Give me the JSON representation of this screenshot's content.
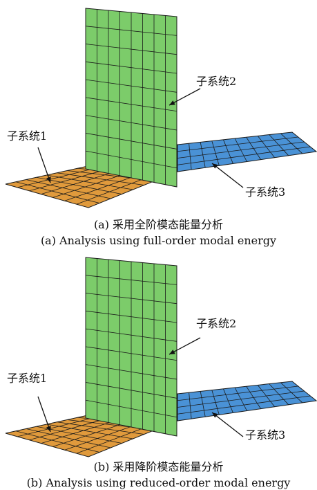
{
  "panels": [
    {
      "id": "a",
      "labels": {
        "subsystem1": "子系统1",
        "subsystem2": "子系统2",
        "subsystem3": "子系统3"
      },
      "caption_cn": "(a)  采用全阶模态能量分析",
      "caption_en": "(a)  Analysis using full-order modal energy"
    },
    {
      "id": "b",
      "labels": {
        "subsystem1": "子系统1",
        "subsystem2": "子系统2",
        "subsystem3": "子系统3"
      },
      "caption_cn": "(b)  采用降阶模态能量分析",
      "caption_en": "(b)  Analysis using reduced-order modal energy"
    }
  ],
  "colors": {
    "subsystem1_plate": "#e09a3c",
    "subsystem2_plate": "#7ccc6a",
    "subsystem3_plate": "#4a92d6",
    "mesh_lines": "#1a1a1a"
  }
}
